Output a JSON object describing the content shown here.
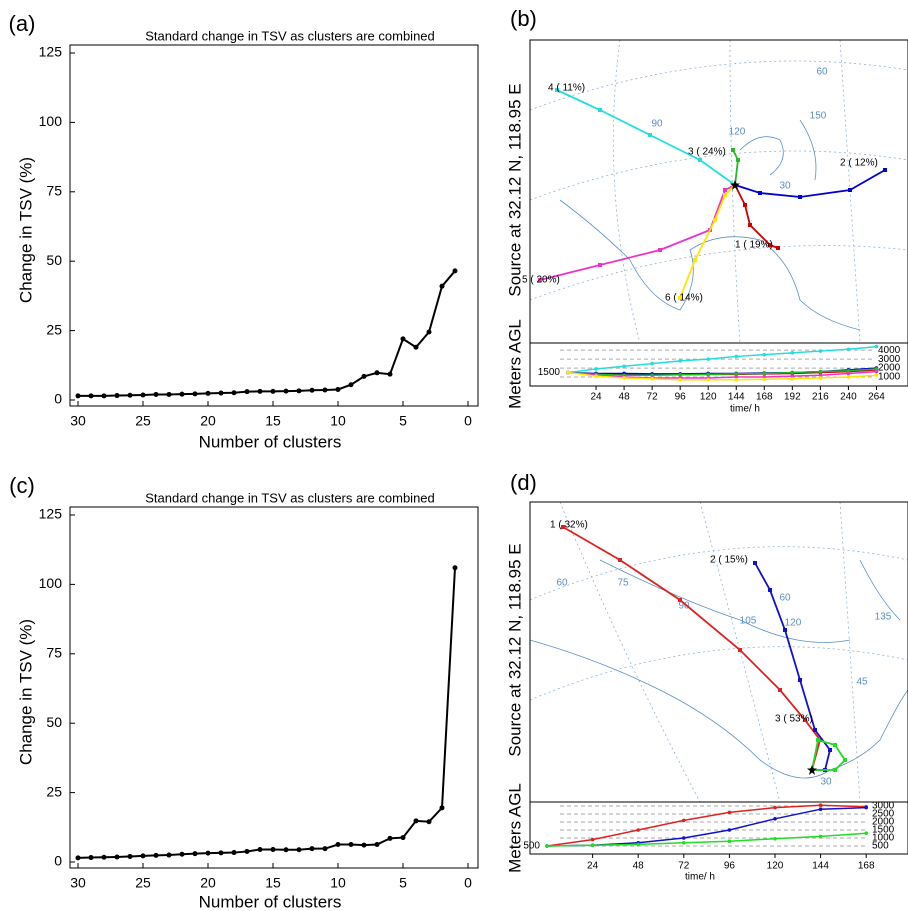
{
  "chart_data": [
    {
      "type": "line",
      "panel_label": "(a)",
      "title": "Standard  change in TSV as clusters are combined",
      "xlabel": "Number of clusters",
      "ylabel": "Change in TSV (%)",
      "x": [
        30,
        29,
        28,
        27,
        26,
        25,
        24,
        23,
        22,
        21,
        20,
        19,
        18,
        17,
        16,
        15,
        14,
        13,
        12,
        11,
        10,
        9,
        8,
        7,
        6,
        5,
        4,
        3,
        2,
        1
      ],
      "values": [
        1.5,
        1.5,
        1.5,
        1.6,
        1.7,
        1.8,
        2,
        2,
        2.1,
        2.2,
        2.4,
        2.5,
        2.6,
        3,
        3.1,
        3.1,
        3.2,
        3.3,
        3.5,
        3.6,
        3.8,
        5.5,
        8.5,
        9.8,
        9.3,
        22,
        19,
        24.5,
        41,
        46.5
      ],
      "color": "#000000",
      "xlim": [
        30,
        0
      ],
      "xticks": [
        30,
        25,
        20,
        15,
        10,
        5,
        0
      ],
      "ylim": [
        0,
        125
      ],
      "yticks": [
        0,
        25,
        50,
        75,
        100,
        125
      ]
    },
    {
      "type": "trajectory",
      "panel_label": "(b)",
      "ylabel": "Source  at  32.12 N,  118.95 E",
      "map_labels": [
        "60",
        "90",
        "120",
        "150",
        "30"
      ],
      "height_ylabel": "Meters AGL",
      "xlabel": "time/ h",
      "start_height": 1500,
      "x": [
        0,
        24,
        48,
        72,
        96,
        120,
        144,
        168,
        192,
        216,
        240,
        264
      ],
      "xlim": [
        0,
        291
      ],
      "xticks": [
        24,
        48,
        72,
        96,
        120,
        144,
        168,
        192,
        216,
        240,
        264
      ],
      "ylim": [
        0,
        4800
      ],
      "yticks": [
        1000,
        2000,
        3000,
        4000
      ],
      "series": [
        {
          "name": "1 ( 19%)",
          "color": "#cc0000",
          "values": [
            1500,
            1300,
            1300,
            1250,
            1250,
            1300,
            1300,
            1350,
            1400,
            1500,
            1600,
            1800
          ]
        },
        {
          "name": "2 ( 12%)",
          "color": "#0000cc",
          "values": [
            1500,
            1400,
            1400,
            1350,
            1350,
            1400,
            1400,
            1450,
            1500,
            1600,
            1800,
            2000
          ]
        },
        {
          "name": "3 ( 24%)",
          "color": "#22bb22",
          "values": [
            1500,
            1300,
            1200,
            1200,
            1250,
            1300,
            1350,
            1400,
            1500,
            1600,
            1700,
            1900
          ]
        },
        {
          "name": "4 ( 11%)",
          "color": "#22dddd",
          "values": [
            1500,
            1900,
            2200,
            2500,
            2800,
            3000,
            3300,
            3500,
            3700,
            3900,
            4100,
            4400
          ]
        },
        {
          "name": "5 ( 20%)",
          "color": "#ee33cc",
          "values": [
            1500,
            1200,
            1000,
            900,
            900,
            900,
            1000,
            1000,
            1100,
            1200,
            1400,
            1600
          ]
        },
        {
          "name": "6 ( 14%)",
          "color": "#ffe600",
          "values": [
            1500,
            1100,
            900,
            800,
            700,
            700,
            700,
            750,
            800,
            900,
            1000,
            1200
          ]
        }
      ]
    },
    {
      "type": "line",
      "panel_label": "(c)",
      "title": "Standard  change in TSV as clusters are combined",
      "xlabel": "Number of clusters",
      "ylabel": "Change in TSV (%)",
      "x": [
        30,
        29,
        28,
        27,
        26,
        25,
        24,
        23,
        22,
        21,
        20,
        19,
        18,
        17,
        16,
        15,
        14,
        13,
        12,
        11,
        10,
        9,
        8,
        7,
        6,
        5,
        4,
        3,
        2,
        1
      ],
      "values": [
        1.5,
        1.6,
        1.7,
        1.8,
        2,
        2.2,
        2.4,
        2.5,
        2.8,
        3,
        3.2,
        3.3,
        3.4,
        3.8,
        4.5,
        4.5,
        4.4,
        4.4,
        4.8,
        4.8,
        6.3,
        6.3,
        6.1,
        6.3,
        8.5,
        8.8,
        14.8,
        14.5,
        19.5,
        106
      ],
      "color": "#000000",
      "xlim": [
        30,
        0
      ],
      "xticks": [
        30,
        25,
        20,
        15,
        10,
        5,
        0
      ],
      "ylim": [
        0,
        125
      ],
      "yticks": [
        0,
        25,
        50,
        75,
        100,
        125
      ]
    },
    {
      "type": "trajectory",
      "panel_label": "(d)",
      "ylabel": "Source  at  32.12 N,  118.95 E",
      "map_labels": [
        "60",
        "75",
        "90",
        "105",
        "120",
        "135",
        "60",
        "45",
        "30"
      ],
      "height_ylabel": "Meters AGL",
      "xlabel": "time/ h",
      "start_height": 500,
      "x": [
        0,
        24,
        48,
        72,
        96,
        120,
        144,
        168
      ],
      "xlim": [
        0,
        190
      ],
      "xticks": [
        24,
        48,
        72,
        96,
        120,
        144,
        168
      ],
      "ylim": [
        0,
        3250
      ],
      "yticks": [
        500,
        1000,
        1500,
        2000,
        2500,
        3000
      ],
      "series": [
        {
          "name": "1 ( 32%)",
          "color": "#dd2222",
          "values": [
            500,
            900,
            1500,
            2100,
            2600,
            2900,
            3050,
            2950
          ]
        },
        {
          "name": "2 ( 15%)",
          "color": "#1111cc",
          "values": [
            500,
            550,
            700,
            1000,
            1500,
            2200,
            2800,
            2900
          ]
        },
        {
          "name": "3 ( 53%)",
          "color": "#22dd22",
          "values": [
            500,
            550,
            600,
            700,
            800,
            950,
            1100,
            1300
          ]
        }
      ]
    }
  ]
}
